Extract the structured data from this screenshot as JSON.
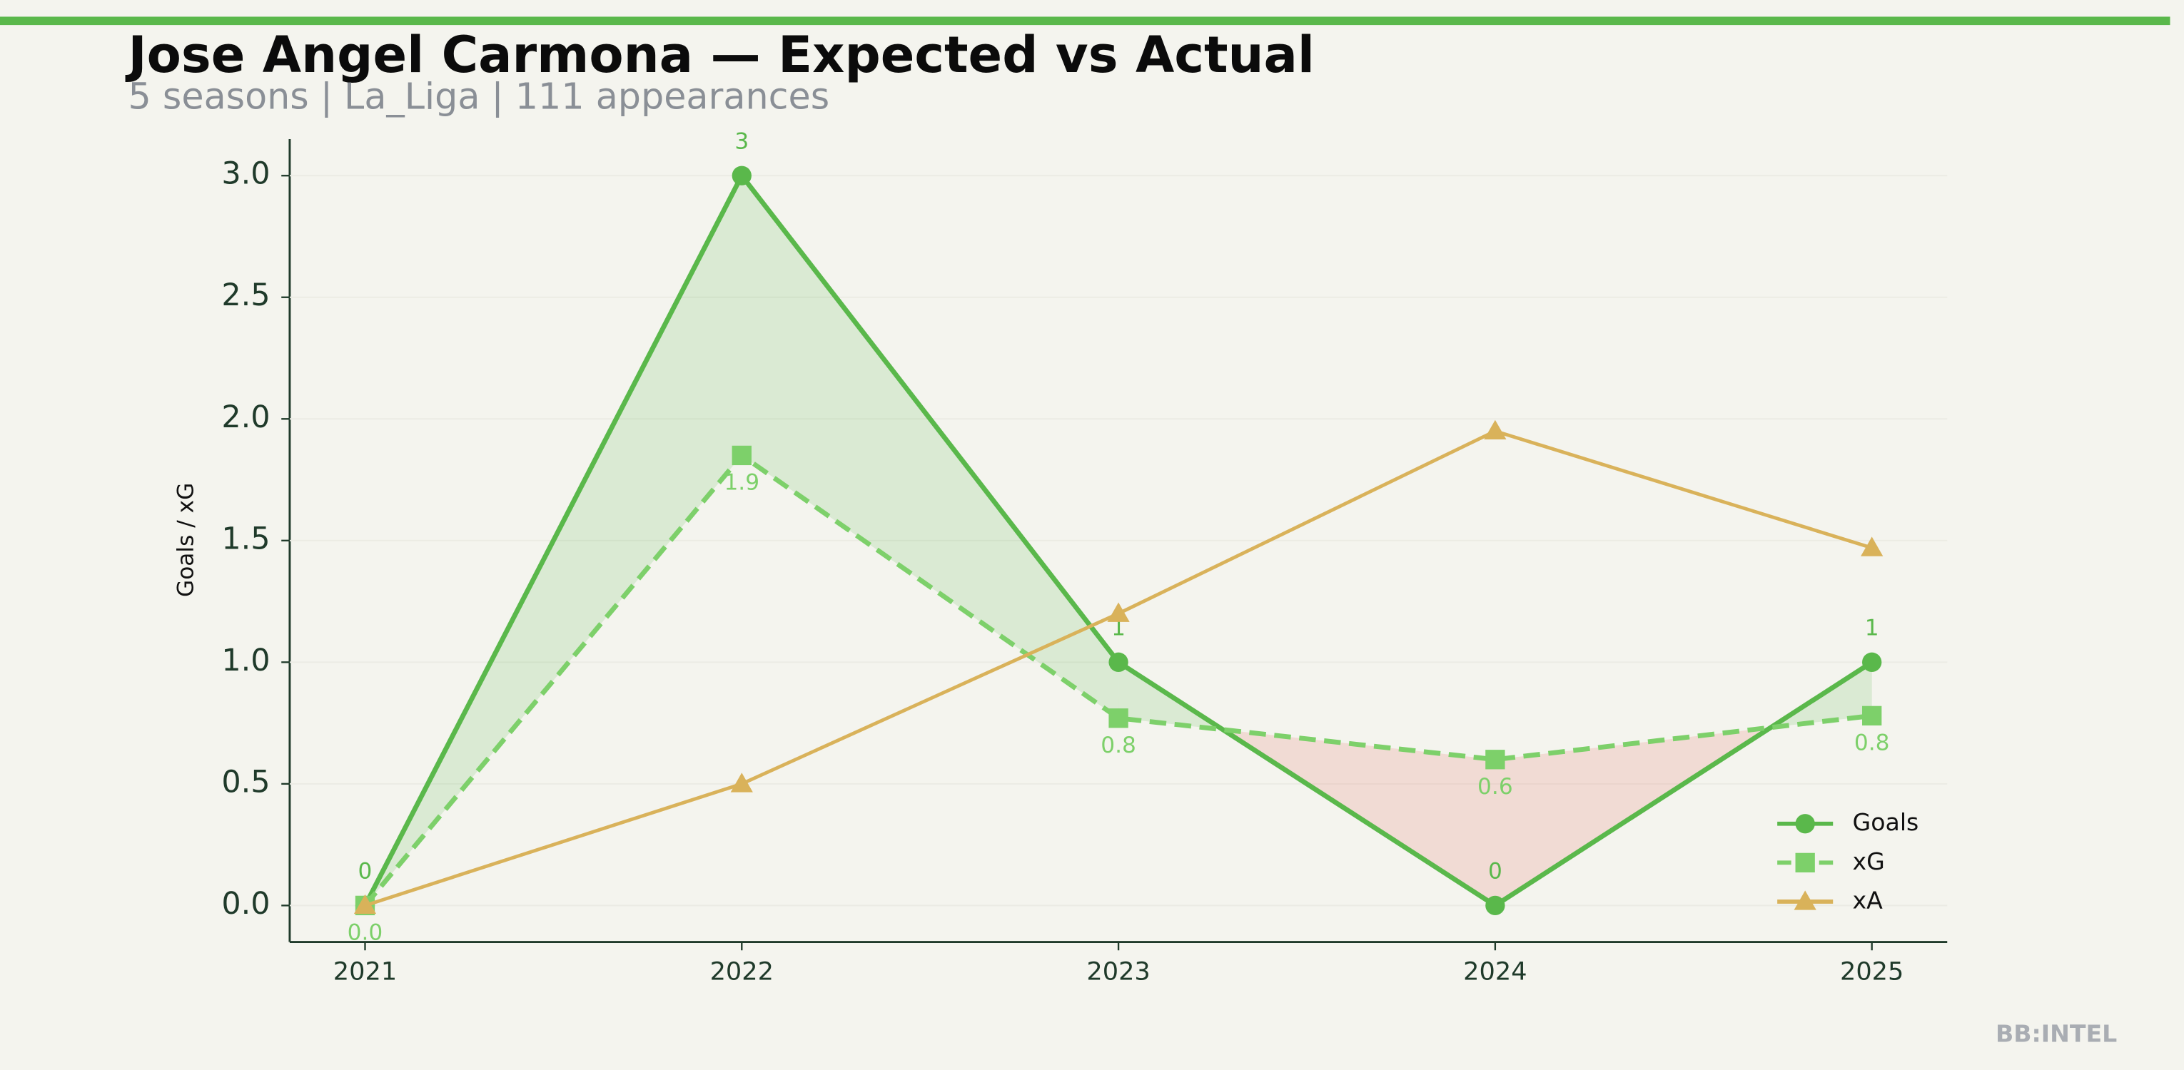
{
  "chart_data": {
    "type": "line",
    "title": "Jose Angel Carmona — Expected vs Actual",
    "subtitle": "5 seasons | La_Liga | 111 appearances",
    "y_label": "Goals / xG",
    "watermark": "BB:INTEL",
    "x": [
      2021,
      2022,
      2023,
      2024,
      2025
    ],
    "xlim": [
      2020.8,
      2025.2
    ],
    "xticks": [
      2021,
      2022,
      2023,
      2024,
      2025
    ],
    "ylim": [
      -0.15,
      3.15
    ],
    "yticks": [
      {
        "value": 0,
        "label": "0.0"
      },
      {
        "value": 0.5,
        "label": "0.5"
      },
      {
        "value": 1,
        "label": "1.0"
      },
      {
        "value": 1.5,
        "label": "1.5"
      },
      {
        "value": 2,
        "label": "2.0"
      },
      {
        "value": 2.5,
        "label": "2.5"
      },
      {
        "value": 3,
        "label": "3.0"
      }
    ],
    "grid": true,
    "legend": "lower right",
    "series": [
      {
        "name": "Goals",
        "color": "#5ab84b",
        "marker": "circle",
        "dash": "solid",
        "values": [
          0,
          3,
          1,
          0,
          1
        ],
        "value_labels": [
          "0",
          "3",
          "1",
          "0",
          "1"
        ]
      },
      {
        "name": "xG",
        "color": "#7dd06a",
        "marker": "square",
        "dash": "dashed",
        "values": [
          0,
          1.85,
          0.77,
          0.6,
          0.78
        ],
        "value_labels": [
          "0.0",
          "1.9",
          "0.8",
          "0.6",
          "0.8"
        ]
      },
      {
        "name": "xA",
        "color": "#d9b25a",
        "marker": "triangle",
        "dash": "solid",
        "values": [
          0,
          0.5,
          1.2,
          1.95,
          1.47
        ]
      }
    ]
  }
}
